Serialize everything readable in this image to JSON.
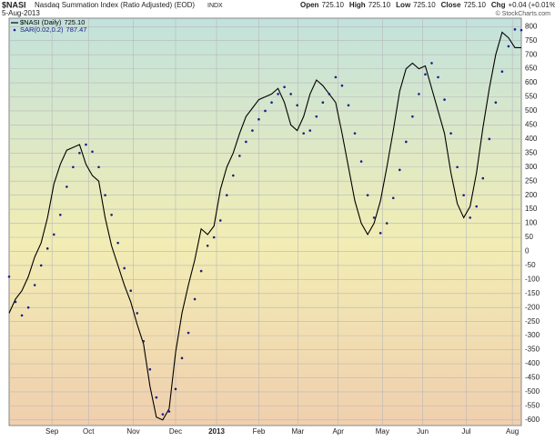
{
  "header": {
    "symbol": "$NASI",
    "description": "Nasdaq Summation Index (Ratio Adjusted) (EOD)",
    "exchange": "INDX",
    "date": "5-Aug-2013",
    "copyright": "© StockCharts.com",
    "quote": [
      {
        "label": "Open",
        "value": "725.10"
      },
      {
        "label": "High",
        "value": "725.10"
      },
      {
        "label": "Low",
        "value": "725.10"
      },
      {
        "label": "Close",
        "value": "725.10"
      },
      {
        "label": "Chg",
        "value": "+0.04 (+0.01%)"
      }
    ]
  },
  "chart_data": {
    "type": "line",
    "xlim": [
      0,
      80
    ],
    "xticks": [
      {
        "value": 6.7,
        "label": "Sep"
      },
      {
        "value": 12.4,
        "label": "Oct"
      },
      {
        "value": 19.4,
        "label": "Nov"
      },
      {
        "value": 26,
        "label": "Dec"
      },
      {
        "value": 32.4,
        "label": "2013"
      },
      {
        "value": 39,
        "label": "Feb"
      },
      {
        "value": 45.1,
        "label": "Mar"
      },
      {
        "value": 51.4,
        "label": "Apr"
      },
      {
        "value": 58.3,
        "label": "May"
      },
      {
        "value": 64.6,
        "label": "Jun"
      },
      {
        "value": 71.4,
        "label": "Jul"
      },
      {
        "value": 78.6,
        "label": "Aug"
      }
    ],
    "ylim": [
      -620,
      830
    ],
    "yticks": [
      -600,
      -550,
      -500,
      -450,
      -400,
      -350,
      -300,
      -250,
      -200,
      -150,
      -100,
      -50,
      0,
      50,
      100,
      150,
      200,
      250,
      300,
      350,
      400,
      450,
      500,
      550,
      600,
      650,
      700,
      750,
      800
    ],
    "grid": true,
    "series": [
      {
        "name": "$NASI (Daily)",
        "legend_value": "725.10",
        "color": "#000000",
        "style": "line",
        "values": [
          -220,
          -170,
          -140,
          -90,
          -20,
          30,
          120,
          240,
          310,
          360,
          370,
          380,
          310,
          270,
          250,
          120,
          20,
          -50,
          -120,
          -180,
          -260,
          -330,
          -480,
          -590,
          -600,
          -560,
          -360,
          -220,
          -120,
          -30,
          80,
          60,
          90,
          220,
          300,
          350,
          420,
          480,
          510,
          540,
          550,
          560,
          580,
          530,
          450,
          430,
          480,
          560,
          610,
          590,
          560,
          530,
          420,
          300,
          180,
          100,
          60,
          100,
          180,
          300,
          430,
          570,
          650,
          670,
          650,
          660,
          580,
          500,
          420,
          280,
          170,
          120,
          160,
          280,
          440,
          580,
          700,
          780,
          760,
          725,
          725.1
        ]
      },
      {
        "name": "SAR(0.02,0.2)",
        "legend_value": "787.47",
        "color": "#1c1c8c",
        "style": "dots",
        "values": [
          -90,
          -180,
          -228,
          -200,
          -120,
          -50,
          10,
          60,
          130,
          230,
          300,
          350,
          380,
          355,
          300,
          200,
          130,
          30,
          -60,
          -140,
          -220,
          -320,
          -420,
          -520,
          -580,
          -570,
          -490,
          -380,
          -290,
          -170,
          -70,
          20,
          50,
          110,
          200,
          270,
          340,
          390,
          430,
          470,
          500,
          530,
          560,
          585,
          560,
          520,
          420,
          430,
          480,
          530,
          560,
          620,
          590,
          520,
          420,
          320,
          200,
          120,
          65,
          100,
          190,
          290,
          390,
          480,
          560,
          630,
          670,
          620,
          540,
          420,
          300,
          200,
          120,
          160,
          260,
          400,
          530,
          640,
          730,
          790,
          787.47
        ]
      }
    ]
  }
}
